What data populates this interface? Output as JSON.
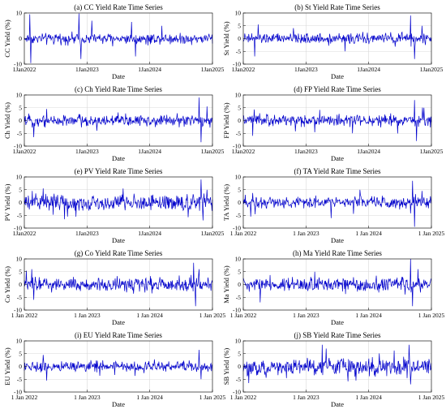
{
  "chart_data": [
    {
      "type": "line",
      "title": "(a) CC Yield Rate Time Series",
      "xlabel": "Date",
      "ylabel": "CC Yield (%)",
      "ylim": [
        -10,
        10
      ],
      "yticks": [
        -10,
        0,
        10
      ],
      "xticks": [
        "1Jan2022",
        "1Jan2023",
        "1Jan2024",
        "1Jan2025"
      ],
      "grid": true,
      "color": "#0000cc",
      "volatility": 1.0,
      "spikes": [
        [
          0.03,
          9.5
        ],
        [
          0.035,
          -9.6
        ],
        [
          0.29,
          9.8
        ],
        [
          0.3,
          -8.0
        ],
        [
          0.36,
          7.0
        ],
        [
          0.57,
          6.5
        ],
        [
          0.59,
          -7.0
        ],
        [
          0.73,
          5.0
        ]
      ]
    },
    {
      "type": "line",
      "title": "(b) St Yield Rate Time Series",
      "xlabel": "Date",
      "ylabel": "St Yield (%)",
      "ylim": [
        -10,
        10
      ],
      "yticks": [
        -10,
        -5,
        0,
        5,
        10
      ],
      "xticks": [
        "1Jan2022",
        "1Jan2023",
        "1Jan2024",
        "1Jan2025"
      ],
      "grid": true,
      "color": "#0000cc",
      "volatility": 1.0,
      "spikes": [
        [
          0.06,
          -7.0
        ],
        [
          0.08,
          5.5
        ],
        [
          0.54,
          -5.0
        ],
        [
          0.89,
          9.0
        ],
        [
          0.91,
          -8.0
        ],
        [
          0.95,
          5.0
        ]
      ]
    },
    {
      "type": "line",
      "title": "(c) Ch Yield Rate Time Series",
      "xlabel": "Date",
      "ylabel": "Ch Yield (%)",
      "ylim": [
        -10,
        10
      ],
      "yticks": [
        -10,
        -5,
        0,
        5,
        10
      ],
      "xticks": [
        "1Jan2022",
        "1Jan2023",
        "1Jan2024",
        "1Jan2025"
      ],
      "grid": true,
      "color": "#0000cc",
      "volatility": 1.1,
      "spikes": [
        [
          0.05,
          -6.5
        ],
        [
          0.12,
          4.5
        ],
        [
          0.93,
          9.0
        ],
        [
          0.94,
          -8.5
        ],
        [
          0.97,
          5.5
        ]
      ]
    },
    {
      "type": "line",
      "title": "(d) FP Yield Rate Time Series",
      "xlabel": "Date",
      "ylabel": "FP Yield (%)",
      "ylim": [
        -10,
        10
      ],
      "yticks": [
        -10,
        -5,
        0,
        5,
        10
      ],
      "xticks": [
        "1Jan2022",
        "1Jan2023",
        "1Jan2024",
        "1Jan2025"
      ],
      "grid": true,
      "color": "#0000cc",
      "volatility": 1.1,
      "spikes": [
        [
          0.05,
          -6.0
        ],
        [
          0.58,
          -5.0
        ],
        [
          0.91,
          8.0
        ],
        [
          0.92,
          -8.0
        ],
        [
          0.96,
          5.0
        ]
      ]
    },
    {
      "type": "line",
      "title": "(e) PV Yield Rate Time Series",
      "xlabel": "Date",
      "ylabel": "PV Yield (%)",
      "ylim": [
        -10,
        10
      ],
      "yticks": [
        -10,
        -5,
        0,
        5,
        10
      ],
      "xticks": [
        "1Jan2022",
        "1Jan2023",
        "1Jan2024",
        "1Jan2025"
      ],
      "grid": true,
      "color": "#0000cc",
      "volatility": 1.6,
      "spikes": [
        [
          0.1,
          5.5
        ],
        [
          0.23,
          -5.5
        ],
        [
          0.94,
          9.0
        ],
        [
          0.95,
          -7.0
        ],
        [
          0.97,
          5.0
        ]
      ]
    },
    {
      "type": "line",
      "title": "(f) TA Yield Rate Time Series",
      "xlabel": "Date",
      "ylabel": "TA Yield (%)",
      "ylim": [
        -10,
        10
      ],
      "yticks": [
        -10,
        -5,
        0,
        5,
        10
      ],
      "xticks": [
        "1 Jan 2022",
        "1 Jan 2023",
        "1 Jan 2024",
        "1 Jan 2025"
      ],
      "grid": true,
      "color": "#0000cc",
      "volatility": 1.1,
      "spikes": [
        [
          0.04,
          -5.5
        ],
        [
          0.62,
          5.0
        ],
        [
          0.9,
          8.5
        ],
        [
          0.91,
          -9.5
        ],
        [
          0.95,
          4.5
        ]
      ]
    },
    {
      "type": "line",
      "title": "(g) Co Yield Rate Time Series",
      "xlabel": "Date",
      "ylabel": "Co Yield (%)",
      "ylim": [
        -10,
        10
      ],
      "yticks": [
        -10,
        -5,
        0,
        5,
        10
      ],
      "xticks": [
        "1 Jan 2022",
        "1 Jan 2023",
        "1 Jan 2024",
        "1 Jan 2025"
      ],
      "grid": true,
      "color": "#0000cc",
      "volatility": 1.3,
      "spikes": [
        [
          0.04,
          6.0
        ],
        [
          0.05,
          -6.0
        ],
        [
          0.9,
          8.5
        ],
        [
          0.91,
          -8.5
        ],
        [
          0.93,
          6.0
        ]
      ]
    },
    {
      "type": "line",
      "title": "(h) Ma Yield Rate Time Series",
      "xlabel": "Date",
      "ylabel": "Ma Yield (%)",
      "ylim": [
        -10,
        10
      ],
      "yticks": [
        -10,
        -5,
        0,
        5,
        10
      ],
      "xticks": [
        "1 Jan 2022",
        "1 Jan 2023",
        "1 Jan 2024",
        "1 Jan 2025"
      ],
      "grid": true,
      "color": "#0000cc",
      "volatility": 1.3,
      "spikes": [
        [
          0.09,
          -7.0
        ],
        [
          0.38,
          5.0
        ],
        [
          0.89,
          10.0
        ],
        [
          0.9,
          -8.5
        ],
        [
          0.93,
          6.0
        ]
      ]
    },
    {
      "type": "line",
      "title": "(i) EU Yield Rate Time Series",
      "xlabel": "Date",
      "ylabel": "EU Yield (%)",
      "ylim": [
        -10,
        10
      ],
      "yticks": [
        -10,
        -5,
        0,
        5,
        10
      ],
      "xticks": [
        "1 Jan 2022",
        "1 Jan 2023",
        "1 Jan 2024",
        "1 Jan 2025"
      ],
      "grid": true,
      "color": "#0000cc",
      "volatility": 1.0,
      "spikes": [
        [
          0.1,
          4.5
        ],
        [
          0.12,
          -5.5
        ],
        [
          0.93,
          6.5
        ],
        [
          0.94,
          -5.0
        ]
      ]
    },
    {
      "type": "line",
      "title": "(j) SB Yield Rate Time Series",
      "xlabel": "Date",
      "ylabel": "SB Yield (%)",
      "ylim": [
        -10,
        10
      ],
      "yticks": [
        -10,
        -5,
        0,
        5,
        10
      ],
      "xticks": [
        "1 Jan 2022",
        "1 Jan 2023",
        "1 Jan 2024",
        "1 Jan 2025"
      ],
      "grid": true,
      "color": "#0000cc",
      "volatility": 1.7,
      "spikes": [
        [
          0.03,
          -6.5
        ],
        [
          0.42,
          8.5
        ],
        [
          0.44,
          7.0
        ],
        [
          0.6,
          -5.5
        ],
        [
          0.88,
          8.5
        ],
        [
          0.89,
          -7.0
        ]
      ]
    }
  ]
}
